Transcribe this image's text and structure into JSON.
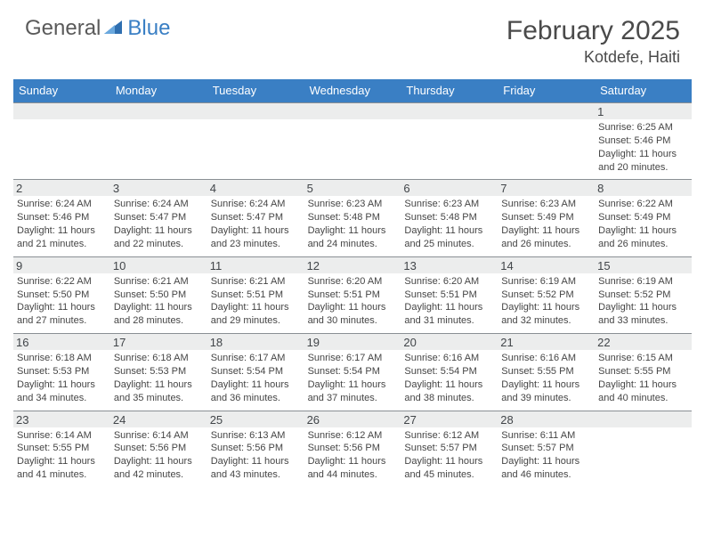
{
  "brand": {
    "general": "General",
    "blue": "Blue"
  },
  "header": {
    "title": "February 2025",
    "location": "Kotdefe, Haiti"
  },
  "colors": {
    "header_bg": "#3a7fc4",
    "daynum_bg": "#eceded",
    "daynum_border": "#8a8f94"
  },
  "weekdays": [
    "Sunday",
    "Monday",
    "Tuesday",
    "Wednesday",
    "Thursday",
    "Friday",
    "Saturday"
  ],
  "weeks": [
    [
      {
        "n": "",
        "sunrise": "",
        "sunset": "",
        "daylight": ""
      },
      {
        "n": "",
        "sunrise": "",
        "sunset": "",
        "daylight": ""
      },
      {
        "n": "",
        "sunrise": "",
        "sunset": "",
        "daylight": ""
      },
      {
        "n": "",
        "sunrise": "",
        "sunset": "",
        "daylight": ""
      },
      {
        "n": "",
        "sunrise": "",
        "sunset": "",
        "daylight": ""
      },
      {
        "n": "",
        "sunrise": "",
        "sunset": "",
        "daylight": ""
      },
      {
        "n": "1",
        "sunrise": "Sunrise: 6:25 AM",
        "sunset": "Sunset: 5:46 PM",
        "daylight": "Daylight: 11 hours and 20 minutes."
      }
    ],
    [
      {
        "n": "2",
        "sunrise": "Sunrise: 6:24 AM",
        "sunset": "Sunset: 5:46 PM",
        "daylight": "Daylight: 11 hours and 21 minutes."
      },
      {
        "n": "3",
        "sunrise": "Sunrise: 6:24 AM",
        "sunset": "Sunset: 5:47 PM",
        "daylight": "Daylight: 11 hours and 22 minutes."
      },
      {
        "n": "4",
        "sunrise": "Sunrise: 6:24 AM",
        "sunset": "Sunset: 5:47 PM",
        "daylight": "Daylight: 11 hours and 23 minutes."
      },
      {
        "n": "5",
        "sunrise": "Sunrise: 6:23 AM",
        "sunset": "Sunset: 5:48 PM",
        "daylight": "Daylight: 11 hours and 24 minutes."
      },
      {
        "n": "6",
        "sunrise": "Sunrise: 6:23 AM",
        "sunset": "Sunset: 5:48 PM",
        "daylight": "Daylight: 11 hours and 25 minutes."
      },
      {
        "n": "7",
        "sunrise": "Sunrise: 6:23 AM",
        "sunset": "Sunset: 5:49 PM",
        "daylight": "Daylight: 11 hours and 26 minutes."
      },
      {
        "n": "8",
        "sunrise": "Sunrise: 6:22 AM",
        "sunset": "Sunset: 5:49 PM",
        "daylight": "Daylight: 11 hours and 26 minutes."
      }
    ],
    [
      {
        "n": "9",
        "sunrise": "Sunrise: 6:22 AM",
        "sunset": "Sunset: 5:50 PM",
        "daylight": "Daylight: 11 hours and 27 minutes."
      },
      {
        "n": "10",
        "sunrise": "Sunrise: 6:21 AM",
        "sunset": "Sunset: 5:50 PM",
        "daylight": "Daylight: 11 hours and 28 minutes."
      },
      {
        "n": "11",
        "sunrise": "Sunrise: 6:21 AM",
        "sunset": "Sunset: 5:51 PM",
        "daylight": "Daylight: 11 hours and 29 minutes."
      },
      {
        "n": "12",
        "sunrise": "Sunrise: 6:20 AM",
        "sunset": "Sunset: 5:51 PM",
        "daylight": "Daylight: 11 hours and 30 minutes."
      },
      {
        "n": "13",
        "sunrise": "Sunrise: 6:20 AM",
        "sunset": "Sunset: 5:51 PM",
        "daylight": "Daylight: 11 hours and 31 minutes."
      },
      {
        "n": "14",
        "sunrise": "Sunrise: 6:19 AM",
        "sunset": "Sunset: 5:52 PM",
        "daylight": "Daylight: 11 hours and 32 minutes."
      },
      {
        "n": "15",
        "sunrise": "Sunrise: 6:19 AM",
        "sunset": "Sunset: 5:52 PM",
        "daylight": "Daylight: 11 hours and 33 minutes."
      }
    ],
    [
      {
        "n": "16",
        "sunrise": "Sunrise: 6:18 AM",
        "sunset": "Sunset: 5:53 PM",
        "daylight": "Daylight: 11 hours and 34 minutes."
      },
      {
        "n": "17",
        "sunrise": "Sunrise: 6:18 AM",
        "sunset": "Sunset: 5:53 PM",
        "daylight": "Daylight: 11 hours and 35 minutes."
      },
      {
        "n": "18",
        "sunrise": "Sunrise: 6:17 AM",
        "sunset": "Sunset: 5:54 PM",
        "daylight": "Daylight: 11 hours and 36 minutes."
      },
      {
        "n": "19",
        "sunrise": "Sunrise: 6:17 AM",
        "sunset": "Sunset: 5:54 PM",
        "daylight": "Daylight: 11 hours and 37 minutes."
      },
      {
        "n": "20",
        "sunrise": "Sunrise: 6:16 AM",
        "sunset": "Sunset: 5:54 PM",
        "daylight": "Daylight: 11 hours and 38 minutes."
      },
      {
        "n": "21",
        "sunrise": "Sunrise: 6:16 AM",
        "sunset": "Sunset: 5:55 PM",
        "daylight": "Daylight: 11 hours and 39 minutes."
      },
      {
        "n": "22",
        "sunrise": "Sunrise: 6:15 AM",
        "sunset": "Sunset: 5:55 PM",
        "daylight": "Daylight: 11 hours and 40 minutes."
      }
    ],
    [
      {
        "n": "23",
        "sunrise": "Sunrise: 6:14 AM",
        "sunset": "Sunset: 5:55 PM",
        "daylight": "Daylight: 11 hours and 41 minutes."
      },
      {
        "n": "24",
        "sunrise": "Sunrise: 6:14 AM",
        "sunset": "Sunset: 5:56 PM",
        "daylight": "Daylight: 11 hours and 42 minutes."
      },
      {
        "n": "25",
        "sunrise": "Sunrise: 6:13 AM",
        "sunset": "Sunset: 5:56 PM",
        "daylight": "Daylight: 11 hours and 43 minutes."
      },
      {
        "n": "26",
        "sunrise": "Sunrise: 6:12 AM",
        "sunset": "Sunset: 5:56 PM",
        "daylight": "Daylight: 11 hours and 44 minutes."
      },
      {
        "n": "27",
        "sunrise": "Sunrise: 6:12 AM",
        "sunset": "Sunset: 5:57 PM",
        "daylight": "Daylight: 11 hours and 45 minutes."
      },
      {
        "n": "28",
        "sunrise": "Sunrise: 6:11 AM",
        "sunset": "Sunset: 5:57 PM",
        "daylight": "Daylight: 11 hours and 46 minutes."
      },
      {
        "n": "",
        "sunrise": "",
        "sunset": "",
        "daylight": ""
      }
    ]
  ]
}
